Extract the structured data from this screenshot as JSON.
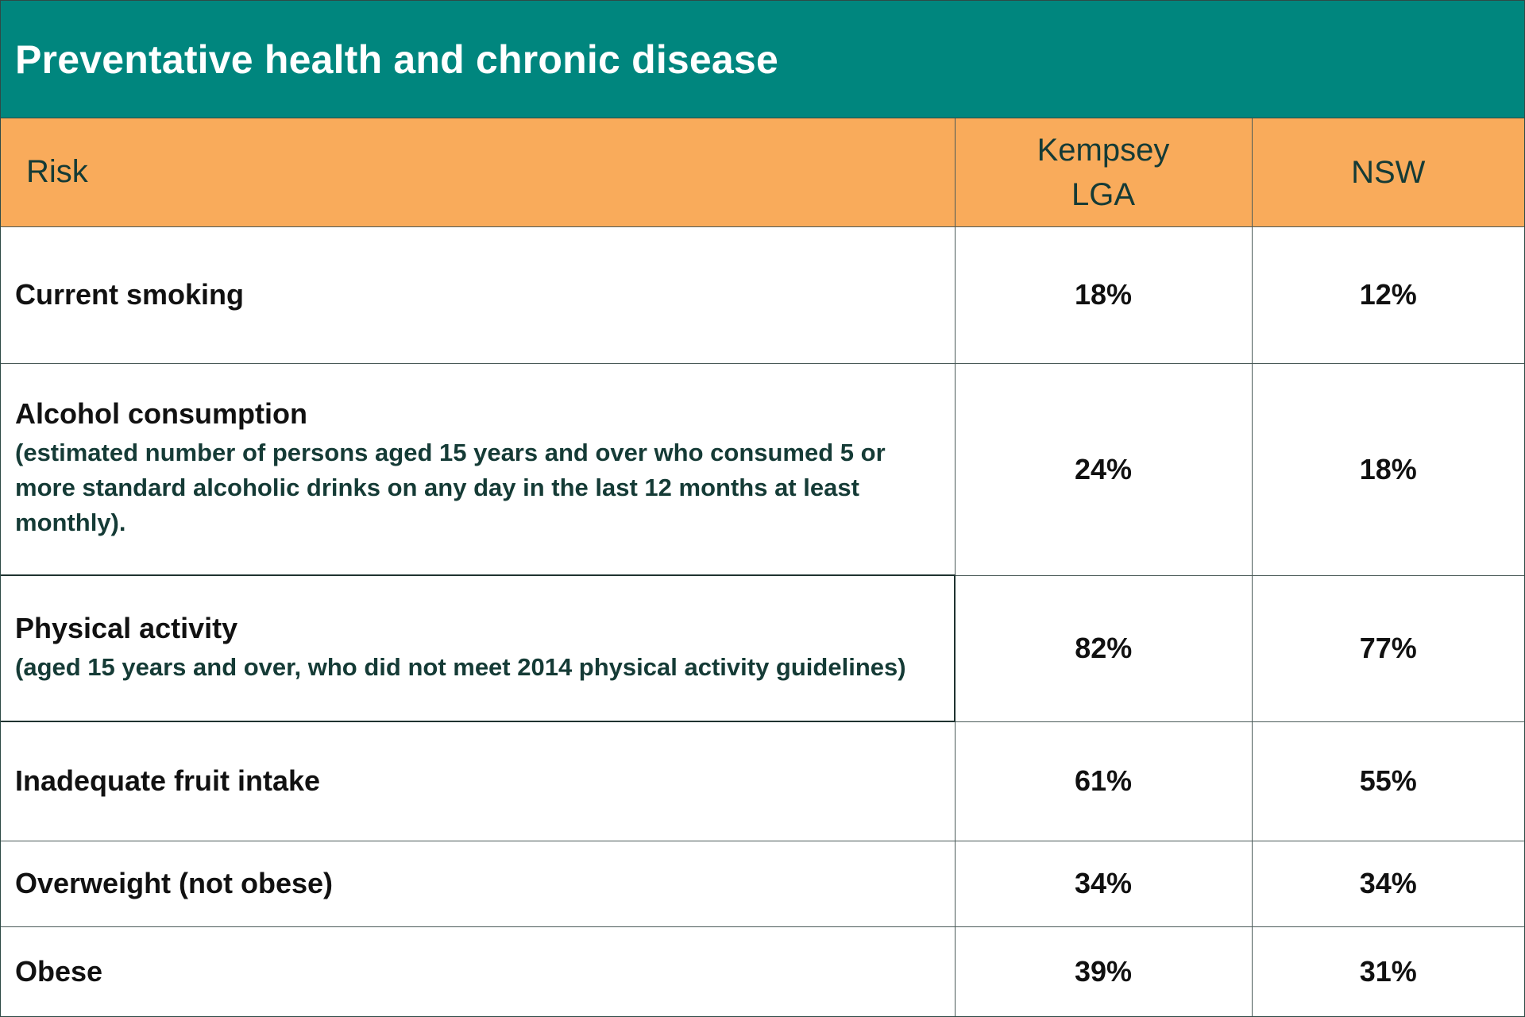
{
  "title": "Preventative health and chronic disease",
  "columns": {
    "risk": "Risk",
    "kempsey_line1": "Kempsey",
    "kempsey_line2": "LGA",
    "nsw": "NSW"
  },
  "rows": [
    {
      "risk": "Current smoking",
      "note": "",
      "kempsey": "18%",
      "nsw": "12%"
    },
    {
      "risk": "Alcohol consumption",
      "note": "(estimated number of persons aged 15 years and over who consumed 5 or more standard alcoholic drinks on any day in the last 12 months at least monthly).",
      "kempsey": "24%",
      "nsw": "18%"
    },
    {
      "risk": "Physical activity",
      "note": "(aged 15 years and over, who did not meet 2014 physical activity guidelines)",
      "kempsey": "82%",
      "nsw": "77%"
    },
    {
      "risk": "Inadequate fruit intake",
      "note": "",
      "kempsey": "61%",
      "nsw": "55%"
    },
    {
      "risk": "Overweight (not obese)",
      "note": "",
      "kempsey": "34%",
      "nsw": "34%"
    },
    {
      "risk": "Obese",
      "note": "",
      "kempsey": "39%",
      "nsw": "31%"
    }
  ],
  "colors": {
    "title_bg": "#00867e",
    "header_bg": "#f9ab5b",
    "header_text": "#153b36"
  }
}
